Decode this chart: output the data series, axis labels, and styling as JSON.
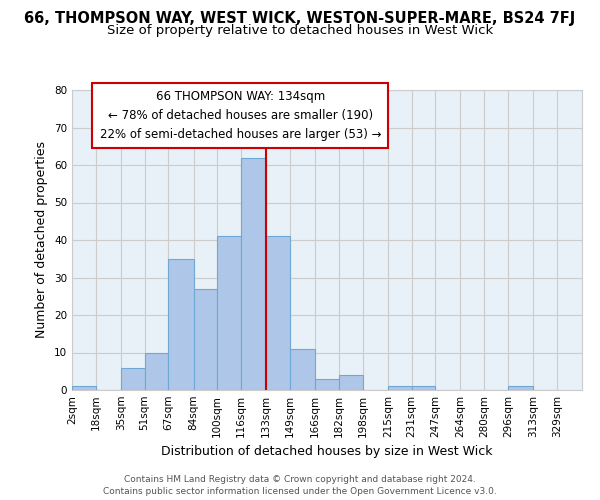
{
  "title": "66, THOMPSON WAY, WEST WICK, WESTON-SUPER-MARE, BS24 7FJ",
  "subtitle": "Size of property relative to detached houses in West Wick",
  "xlabel": "Distribution of detached houses by size in West Wick",
  "ylabel": "Number of detached properties",
  "bin_edges": [
    2,
    18,
    35,
    51,
    67,
    84,
    100,
    116,
    133,
    149,
    166,
    182,
    198,
    215,
    231,
    247,
    264,
    280,
    296,
    313,
    329
  ],
  "bin_counts": [
    1,
    0,
    6,
    10,
    35,
    27,
    41,
    62,
    41,
    11,
    3,
    4,
    0,
    1,
    1,
    0,
    0,
    0,
    1,
    0
  ],
  "bar_color": "#aec6e8",
  "bar_edge_color": "#6fa8d4",
  "marker_x": 133,
  "marker_color": "#cc0000",
  "annotation_title": "66 THOMPSON WAY: 134sqm",
  "annotation_line1": "← 78% of detached houses are smaller (190)",
  "annotation_line2": "22% of semi-detached houses are larger (53) →",
  "annotation_box_color": "#ffffff",
  "annotation_box_edge": "#cc0000",
  "ylim": [
    0,
    80
  ],
  "yticks": [
    0,
    10,
    20,
    30,
    40,
    50,
    60,
    70,
    80
  ],
  "tick_labels": [
    "2sqm",
    "18sqm",
    "35sqm",
    "51sqm",
    "67sqm",
    "84sqm",
    "100sqm",
    "116sqm",
    "133sqm",
    "149sqm",
    "166sqm",
    "182sqm",
    "198sqm",
    "215sqm",
    "231sqm",
    "247sqm",
    "264sqm",
    "280sqm",
    "296sqm",
    "313sqm",
    "329sqm"
  ],
  "footer_line1": "Contains HM Land Registry data © Crown copyright and database right 2024.",
  "footer_line2": "Contains public sector information licensed under the Open Government Licence v3.0.",
  "grid_color": "#cccccc",
  "background_color": "#ffffff",
  "title_fontsize": 10.5,
  "subtitle_fontsize": 9.5,
  "axis_label_fontsize": 9,
  "tick_fontsize": 7.5,
  "annotation_fontsize": 8.5,
  "footer_fontsize": 6.5,
  "xlim_left": 2,
  "xlim_right": 346
}
